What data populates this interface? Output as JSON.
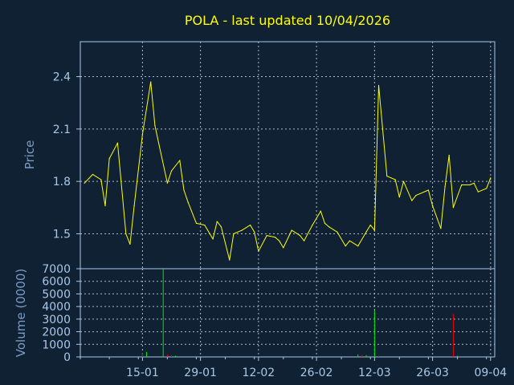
{
  "chart_data": [
    {
      "type": "line",
      "title": "POLA - last updated 10/04/2026",
      "ylabel": "Price",
      "xlabel": "",
      "ylim": [
        1.3,
        2.6
      ],
      "yticks": [
        "1.5",
        "1.8",
        "2.1",
        "2.4"
      ],
      "ytick_values": [
        1.5,
        1.8,
        2.1,
        2.4
      ],
      "grid": true,
      "series": [
        {
          "color": "#ffff00",
          "x": [
            "2026-01-01",
            "2026-01-03",
            "2026-01-05",
            "2026-01-06",
            "2026-01-07",
            "2026-01-09",
            "2026-01-11",
            "2026-01-12",
            "2026-01-13",
            "2026-01-15",
            "2026-01-17",
            "2026-01-18",
            "2026-01-19",
            "2026-01-21",
            "2026-01-22",
            "2026-01-24",
            "2026-01-25",
            "2026-01-26",
            "2026-01-28",
            "2026-01-30",
            "2026-02-01",
            "2026-02-02",
            "2026-02-03",
            "2026-02-05",
            "2026-02-06",
            "2026-02-08",
            "2026-02-10",
            "2026-02-11",
            "2026-02-12",
            "2026-02-14",
            "2026-02-16",
            "2026-02-17",
            "2026-02-18",
            "2026-02-20",
            "2026-02-22",
            "2026-02-23",
            "2026-02-25",
            "2026-02-27",
            "2026-02-28",
            "2026-03-01",
            "2026-03-03",
            "2026-03-05",
            "2026-03-06",
            "2026-03-08",
            "2026-03-10",
            "2026-03-11",
            "2026-03-12",
            "2026-03-13",
            "2026-03-15",
            "2026-03-16",
            "2026-03-17",
            "2026-03-18",
            "2026-03-19",
            "2026-03-21",
            "2026-03-22",
            "2026-03-25",
            "2026-03-26",
            "2026-03-28",
            "2026-03-29",
            "2026-03-30",
            "2026-03-31",
            "2026-04-02",
            "2026-04-04",
            "2026-04-05",
            "2026-04-06",
            "2026-04-08",
            "2026-04-09"
          ],
          "values": [
            1.79,
            1.84,
            1.81,
            1.66,
            1.93,
            2.02,
            1.5,
            1.44,
            1.66,
            2.07,
            2.37,
            2.12,
            2.01,
            1.79,
            1.86,
            1.92,
            1.75,
            1.68,
            1.56,
            1.55,
            1.47,
            1.57,
            1.54,
            1.35,
            1.5,
            1.52,
            1.55,
            1.51,
            1.4,
            1.49,
            1.48,
            1.46,
            1.42,
            1.52,
            1.49,
            1.46,
            1.55,
            1.63,
            1.56,
            1.54,
            1.51,
            1.43,
            1.46,
            1.43,
            1.51,
            1.55,
            1.52,
            2.35,
            1.83,
            1.82,
            1.81,
            1.71,
            1.8,
            1.69,
            1.72,
            1.75,
            1.66,
            1.53,
            1.77,
            1.95,
            1.65,
            1.78,
            1.78,
            1.79,
            1.74,
            1.76,
            1.82
          ]
        }
      ]
    },
    {
      "type": "bar",
      "ylabel": "Volume (0000)",
      "xlabel": "",
      "ylim": [
        0,
        7000
      ],
      "yticks": [
        "0",
        "1000",
        "2000",
        "3000",
        "4000",
        "5000",
        "6000",
        "7000"
      ],
      "ytick_values": [
        0,
        1000,
        2000,
        3000,
        4000,
        5000,
        6000,
        7000
      ],
      "grid": true,
      "xticks": [
        "15-01",
        "29-01",
        "12-02",
        "26-02",
        "12-03",
        "26-03",
        "09-04"
      ],
      "xtick_dates": [
        "2026-01-15",
        "2026-01-29",
        "2026-02-12",
        "2026-02-26",
        "2026-03-12",
        "2026-03-26",
        "2026-04-09"
      ],
      "xlim": [
        "2025-12-31",
        "2026-04-10"
      ],
      "colors": {
        "up": "#00ee00",
        "down": "#ee0000"
      },
      "bars": [
        {
          "x": "2026-01-15",
          "value": 250,
          "dir": "up"
        },
        {
          "x": "2026-01-15",
          "value": 300,
          "dir": "down"
        },
        {
          "x": "2026-01-16",
          "value": 400,
          "dir": "up"
        },
        {
          "x": "2026-01-20",
          "value": 7000,
          "dir": "up"
        },
        {
          "x": "2026-01-21",
          "value": 200,
          "dir": "down"
        },
        {
          "x": "2026-01-22",
          "value": 150,
          "dir": "down"
        },
        {
          "x": "2026-01-23",
          "value": 100,
          "dir": "up"
        },
        {
          "x": "2026-03-08",
          "value": 200,
          "dir": "up"
        },
        {
          "x": "2026-03-09",
          "value": 150,
          "dir": "down"
        },
        {
          "x": "2026-03-10",
          "value": 150,
          "dir": "up"
        },
        {
          "x": "2026-03-12",
          "value": 3700,
          "dir": "up"
        },
        {
          "x": "2026-03-13",
          "value": 100,
          "dir": "down"
        },
        {
          "x": "2026-03-31",
          "value": 3400,
          "dir": "down"
        },
        {
          "x": "2026-04-01",
          "value": 100,
          "dir": "up"
        }
      ]
    }
  ]
}
